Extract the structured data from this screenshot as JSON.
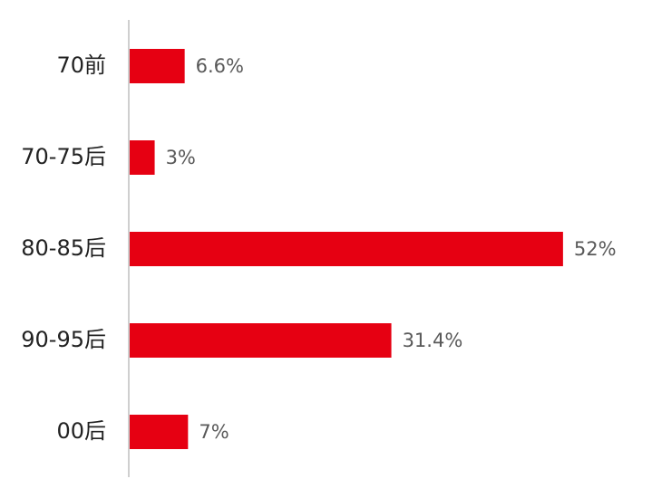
{
  "chart_data": {
    "type": "bar",
    "orientation": "horizontal",
    "categories": [
      "70前",
      "70-75后",
      "80-85后",
      "90-95后",
      "00后"
    ],
    "values": [
      6.6,
      3,
      52,
      31.4,
      7
    ],
    "value_labels": [
      "6.6%",
      "3%",
      "52%",
      "31.4%",
      "7%"
    ],
    "color": "#e60012"
  }
}
